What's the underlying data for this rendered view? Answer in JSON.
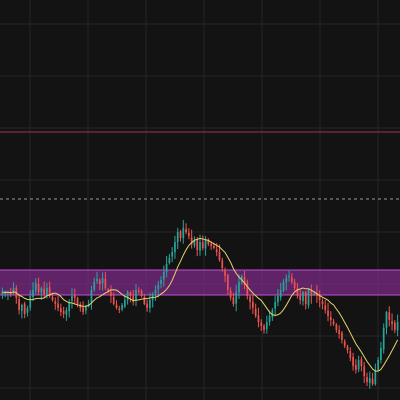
{
  "chart_data": {
    "type": "candlestick",
    "title": "",
    "xlabel": "",
    "ylabel": "",
    "grid": true,
    "ylim": [
      0,
      400
    ],
    "colors": {
      "background": "#131313",
      "grid": "#262626",
      "up": "#26a69a",
      "down": "#ef5350",
      "moving_average": "#e8d36a",
      "zone_fill": "#7b2a86",
      "zone_border": "#c24fd0",
      "resistance_line": "#a8324a",
      "dashed_line": "#9a9a9a"
    },
    "resistance_level": 268,
    "dashed_level": 201,
    "zone": {
      "low": 105,
      "high": 130
    },
    "closes": [
      108,
      107,
      108,
      106,
      112,
      102,
      90,
      95,
      86,
      92,
      104,
      110,
      117,
      108,
      112,
      106,
      112,
      104,
      100,
      96,
      92,
      88,
      86,
      90,
      98,
      104,
      102,
      96,
      92,
      88,
      94,
      96,
      110,
      118,
      121,
      116,
      122,
      112,
      108,
      104,
      96,
      92,
      90,
      95,
      100,
      108,
      104,
      98,
      110,
      108,
      104,
      96,
      92,
      100,
      106,
      110,
      115,
      120,
      128,
      136,
      142,
      148,
      158,
      168,
      162,
      172,
      168,
      164,
      156,
      160,
      150,
      158,
      152,
      160,
      156,
      154,
      152,
      148,
      140,
      132,
      124,
      110,
      102,
      96,
      108,
      118,
      124,
      116,
      104,
      98,
      92,
      84,
      78,
      74,
      70,
      78,
      84,
      90,
      98,
      104,
      110,
      118,
      122,
      124,
      118,
      112,
      104,
      100,
      108,
      96,
      110,
      104,
      106,
      104,
      100,
      96,
      90,
      84,
      80,
      76,
      70,
      66,
      60,
      54,
      50,
      42,
      34,
      30,
      40,
      34,
      24,
      18,
      22,
      16,
      30,
      40,
      52,
      72,
      88,
      80,
      76,
      70,
      78
    ]
  }
}
